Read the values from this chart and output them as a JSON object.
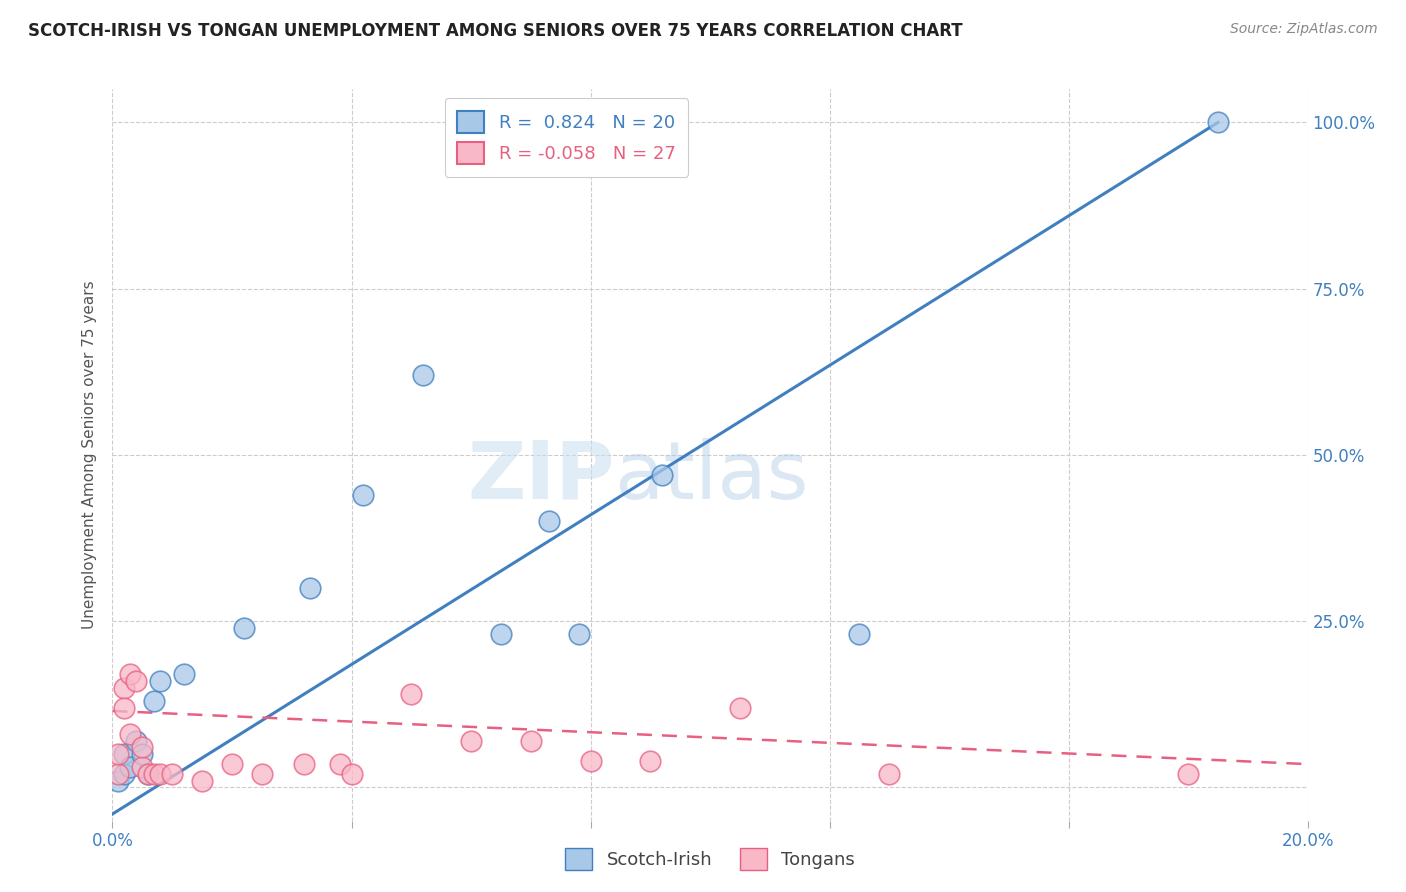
{
  "title": "SCOTCH-IRISH VS TONGAN UNEMPLOYMENT AMONG SENIORS OVER 75 YEARS CORRELATION CHART",
  "source": "Source: ZipAtlas.com",
  "ylabel": "Unemployment Among Seniors over 75 years",
  "xlim": [
    0.0,
    0.2
  ],
  "ylim": [
    -0.05,
    1.05
  ],
  "scotch_irish_R": 0.824,
  "scotch_irish_N": 20,
  "tongan_R": -0.058,
  "tongan_N": 27,
  "scotch_irish_color": "#a8c8e8",
  "tongan_color": "#f8b8c8",
  "scotch_irish_line_color": "#4080c0",
  "tongan_line_color": "#e86080",
  "watermark_zip": "ZIP",
  "watermark_atlas": "atlas",
  "si_line_x0": 0.0,
  "si_line_y0": -0.04,
  "si_line_x1": 0.185,
  "si_line_y1": 1.0,
  "to_line_x0": 0.0,
  "to_line_y0": 0.115,
  "to_line_x1": 0.2,
  "to_line_y1": 0.035,
  "scotch_irish_x": [
    0.001,
    0.002,
    0.002,
    0.003,
    0.004,
    0.005,
    0.006,
    0.007,
    0.008,
    0.012,
    0.022,
    0.033,
    0.042,
    0.052,
    0.065,
    0.073,
    0.078,
    0.092,
    0.125,
    0.185
  ],
  "scotch_irish_y": [
    0.01,
    0.02,
    0.05,
    0.03,
    0.07,
    0.05,
    0.02,
    0.13,
    0.16,
    0.17,
    0.24,
    0.3,
    0.44,
    0.62,
    0.23,
    0.4,
    0.23,
    0.47,
    0.23,
    1.0
  ],
  "tongan_x": [
    0.001,
    0.001,
    0.002,
    0.002,
    0.003,
    0.003,
    0.004,
    0.005,
    0.005,
    0.006,
    0.007,
    0.008,
    0.01,
    0.015,
    0.02,
    0.025,
    0.032,
    0.038,
    0.04,
    0.05,
    0.06,
    0.07,
    0.08,
    0.09,
    0.105,
    0.13,
    0.18
  ],
  "tongan_y": [
    0.02,
    0.05,
    0.15,
    0.12,
    0.17,
    0.08,
    0.16,
    0.03,
    0.06,
    0.02,
    0.02,
    0.02,
    0.02,
    0.01,
    0.035,
    0.02,
    0.035,
    0.035,
    0.02,
    0.14,
    0.07,
    0.07,
    0.04,
    0.04,
    0.12,
    0.02,
    0.02
  ]
}
